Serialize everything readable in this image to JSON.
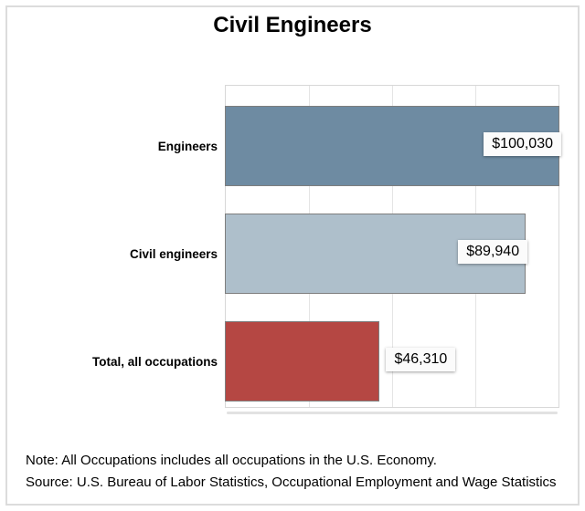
{
  "page": {
    "title": "Civil Engineers"
  },
  "chart_data": {
    "type": "bar",
    "orientation": "horizontal",
    "title": "Civil Engineers",
    "categories": [
      "Engineers",
      "Civil engineers",
      "Total, all occupations"
    ],
    "values": [
      100030,
      89940,
      46310
    ],
    "value_labels": [
      "$100,030",
      "$89,940",
      "$46,310"
    ],
    "xlim": [
      0,
      100030
    ],
    "gridline_values": [
      25000,
      50000,
      75000
    ],
    "bar_colors": [
      "#6E8BA2",
      "#AEBFCB",
      "#B54743"
    ],
    "xlabel": "",
    "ylabel": "",
    "legend": "none",
    "grid": "vertical"
  },
  "footer": {
    "note": "Note: All Occupations includes all occupations in the U.S. Economy.",
    "source": "Source: U.S. Bureau of Labor Statistics, Occupational Employment and Wage Statistics"
  },
  "colors": {
    "bar_border": "#7e7e7e",
    "gridline": "#e4e4e4",
    "plot_border": "#d8d8d8",
    "page_border": "#dcdcdc",
    "value_box_bg": "#fbfbfb",
    "text": "#000000"
  }
}
